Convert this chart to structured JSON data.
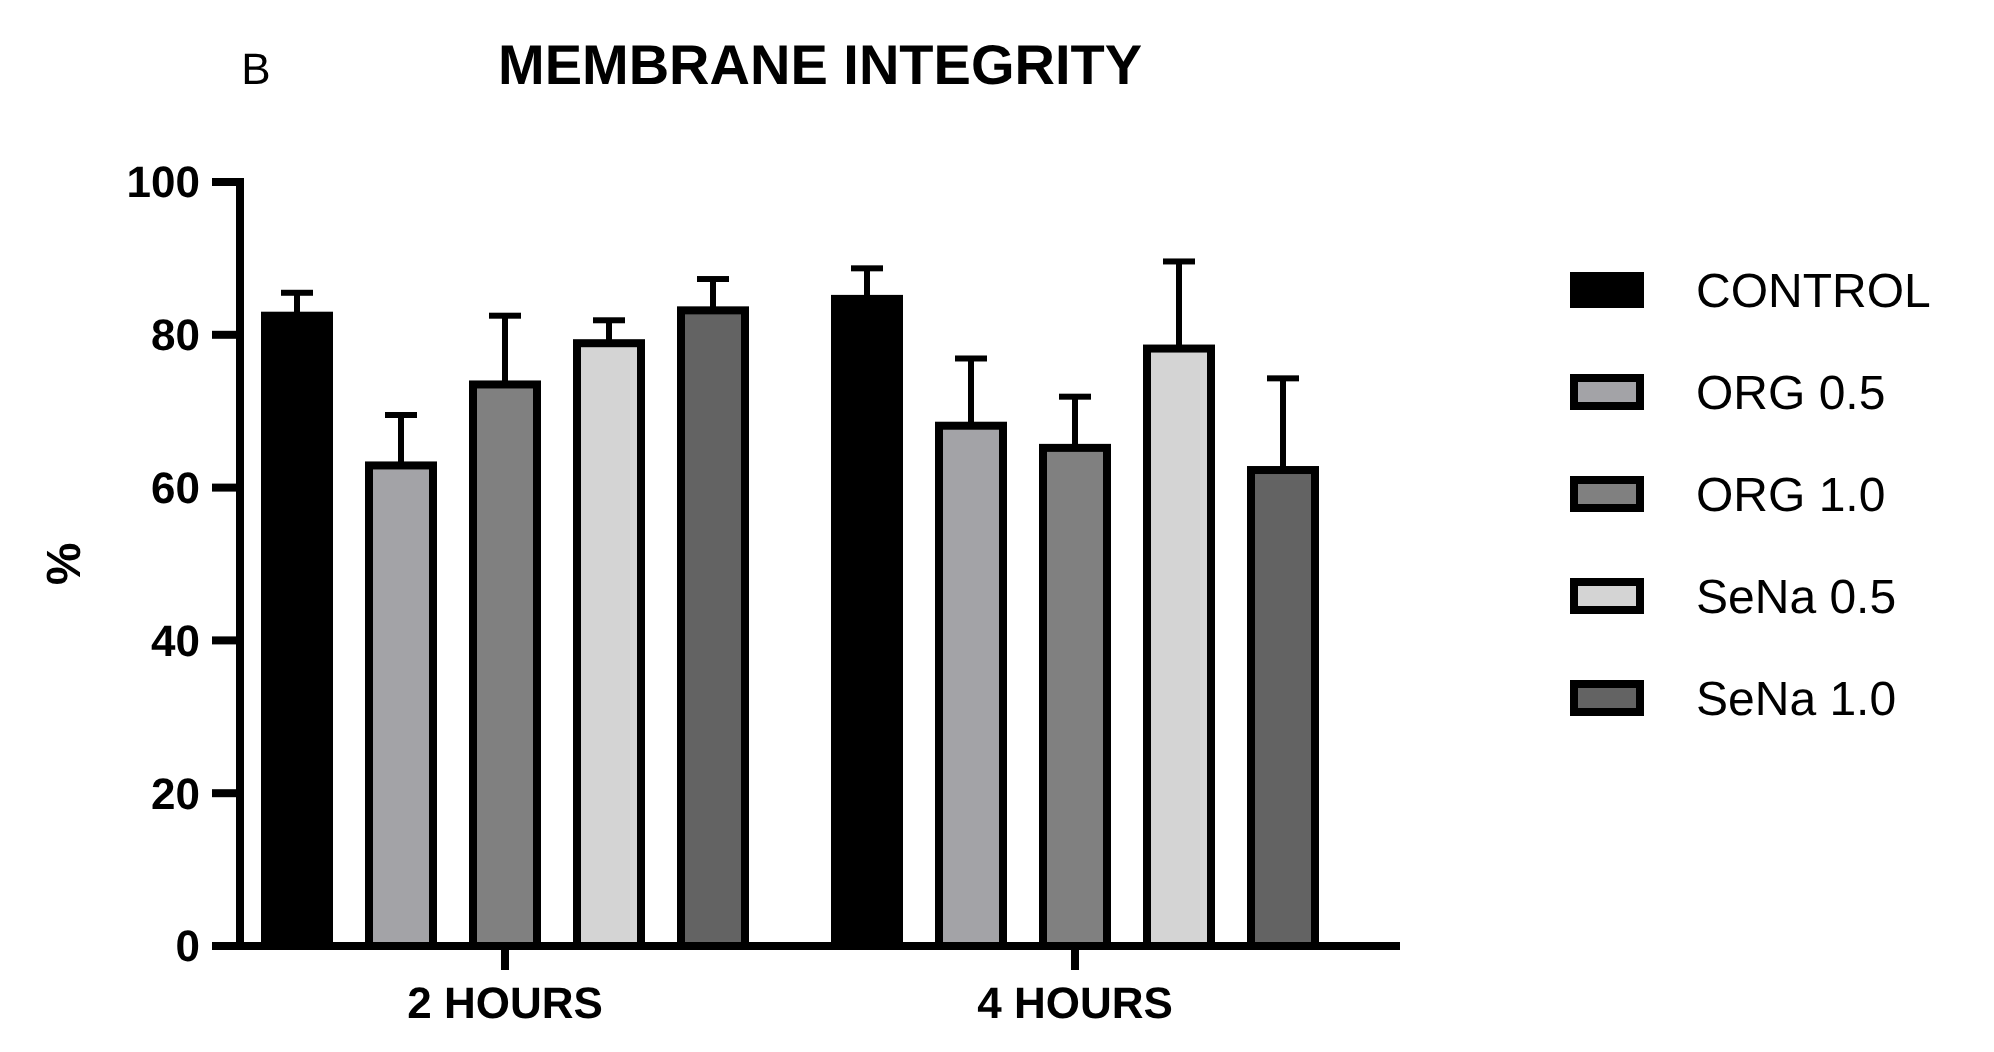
{
  "chart_data": {
    "type": "bar",
    "title": "MEMBRANE INTEGRITY",
    "ylabel": "%",
    "annotations": [
      "B"
    ],
    "categories": [
      "2 HOURS",
      "4 HOURS"
    ],
    "series": [
      {
        "name": "CONTROL",
        "color": "#000000",
        "values": [
          82.5,
          84.7
        ],
        "errors": [
          [
            82.5,
            85.5
          ],
          [
            84.7,
            88.7
          ]
        ]
      },
      {
        "name": "ORG 0.5",
        "color": "#a3a3a7",
        "values": [
          62.9,
          68.1
        ],
        "errors": [
          [
            62.9,
            69.5
          ],
          [
            68.1,
            76.9
          ]
        ]
      },
      {
        "name": "ORG 1.0",
        "color": "#808080",
        "values": [
          73.5,
          65.2
        ],
        "errors": [
          [
            73.5,
            82.5
          ],
          [
            65.2,
            71.9
          ]
        ]
      },
      {
        "name": "SeNa 0.5",
        "color": "#d4d4d4",
        "values": [
          78.9,
          78.2
        ],
        "errors": [
          [
            78.9,
            81.9
          ],
          [
            78.2,
            89.6
          ]
        ]
      },
      {
        "name": "SeNa 1.0",
        "color": "#636363",
        "values": [
          83.2,
          62.3
        ],
        "errors": [
          [
            83.2,
            87.3
          ],
          [
            62.3,
            74.3
          ]
        ]
      }
    ],
    "ylim": [
      0,
      100
    ],
    "yticks": [
      0,
      20,
      40,
      60,
      80,
      100
    ],
    "grid": false,
    "legend": "right"
  }
}
